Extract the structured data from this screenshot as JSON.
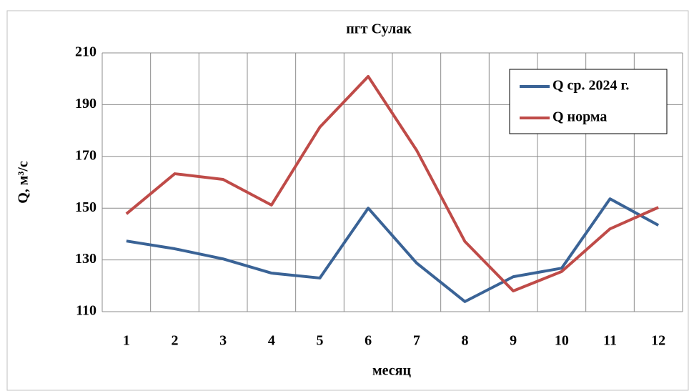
{
  "chart_data": {
    "type": "line",
    "title": "пгт Сулак",
    "xlabel": "месяц",
    "ylabel": "Q, м³/с",
    "categories": [
      1,
      2,
      3,
      4,
      5,
      6,
      7,
      8,
      9,
      10,
      11,
      12
    ],
    "series": [
      {
        "name": "Q ср. 2024 г.",
        "color": "#3a6396",
        "values": [
          137.3,
          134.3,
          130.4,
          124.9,
          123,
          150,
          128.8,
          113.9,
          123.5,
          126.8,
          153.6,
          143.4
        ]
      },
      {
        "name": "Q норма",
        "color": "#bf4b48",
        "values": [
          147.8,
          163.3,
          161.1,
          151.2,
          181.3,
          200.9,
          172.4,
          137.1,
          118,
          125.5,
          142,
          150.3
        ]
      }
    ],
    "ylim": [
      110,
      210
    ],
    "yticks": [
      110,
      130,
      150,
      170,
      190,
      210
    ],
    "grid": true,
    "legend": "upper right"
  }
}
